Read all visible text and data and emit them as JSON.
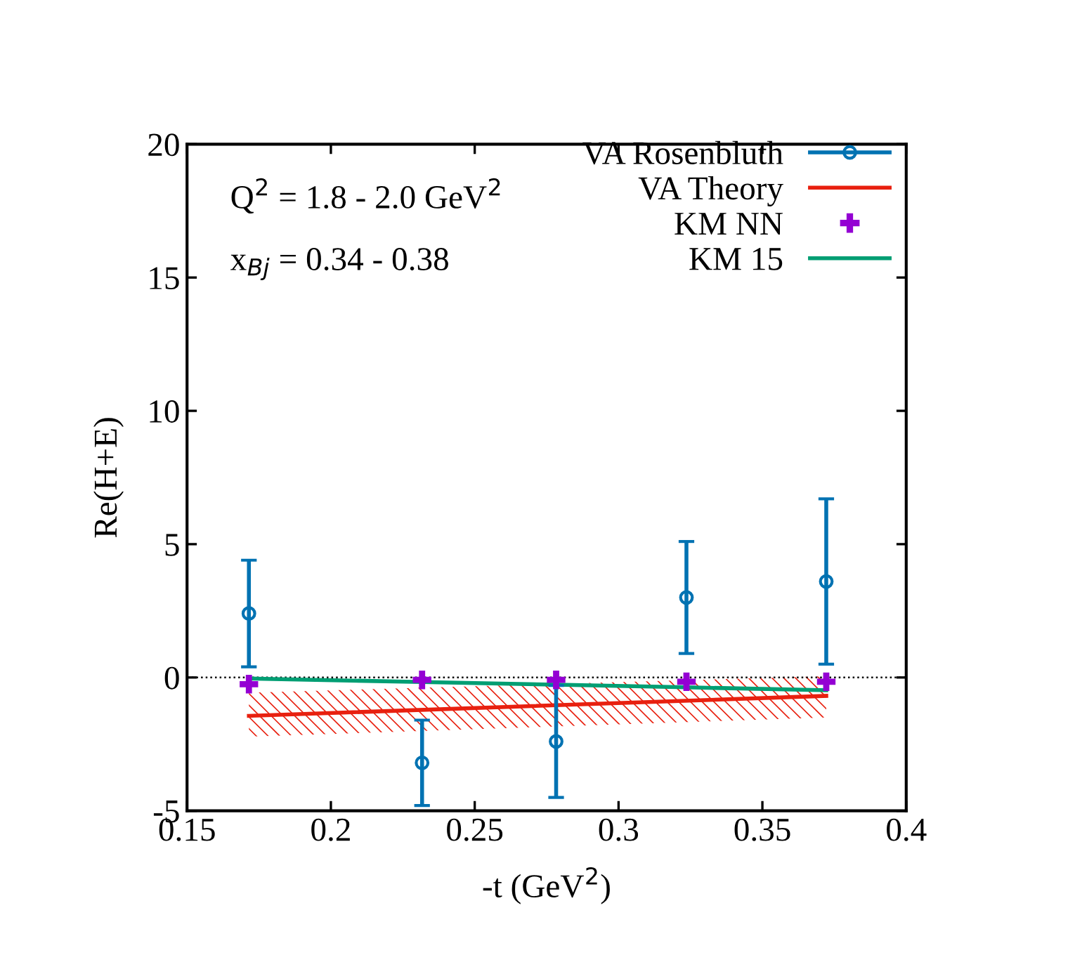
{
  "chart_data": {
    "type": "scatter",
    "xlabel": "-t (GeV$^{2}$)",
    "ylabel": "Re(H+E)",
    "x": [
      0.1715,
      0.2317,
      0.2783,
      0.3236,
      0.3722
    ],
    "xlim": [
      0.15,
      0.4
    ],
    "xticks": [
      0.15,
      0.2,
      0.25,
      0.3,
      0.35,
      0.4
    ],
    "ylim": [
      -5,
      20
    ],
    "yticks": [
      -5,
      0,
      5,
      10,
      15,
      20
    ],
    "grid": false,
    "legend": "top right",
    "annotations": [
      "Q$^{2}$ = 1.8 - 2.0 GeV$^{2}$",
      "x$_{Bj}$ = 0.34 - 0.38"
    ],
    "ref_lines": [
      {
        "axis": "y",
        "value": 0,
        "color": "#000000",
        "line_style": "dotted"
      }
    ],
    "series": [
      {
        "name": "VA Rosenbluth",
        "color": "#0072b2",
        "marker": "circle",
        "values": [
          2.4,
          -3.2,
          -2.4,
          3.0,
          3.6
        ],
        "errors": [
          2.0,
          1.6,
          2.1,
          2.1,
          3.1
        ]
      },
      {
        "name": "VA Theory",
        "type": "line",
        "color": "#e8200f",
        "line_style": "solid",
        "x": [
          0.1715,
          0.3722
        ],
        "values": [
          -1.44,
          -0.69
        ],
        "lower": [
          -2.22,
          -1.5
        ],
        "upper": [
          -0.57,
          0.05
        ]
      },
      {
        "name": "KM NN",
        "color": "#9400d3",
        "marker": "cross",
        "values": [
          -0.25,
          -0.09,
          -0.09,
          -0.16,
          -0.16
        ]
      },
      {
        "name": "KM 15",
        "type": "line",
        "color": "#009e73",
        "line_style": "solid",
        "values": [
          -0.04,
          -0.17,
          -0.27,
          -0.37,
          -0.48
        ]
      }
    ]
  }
}
